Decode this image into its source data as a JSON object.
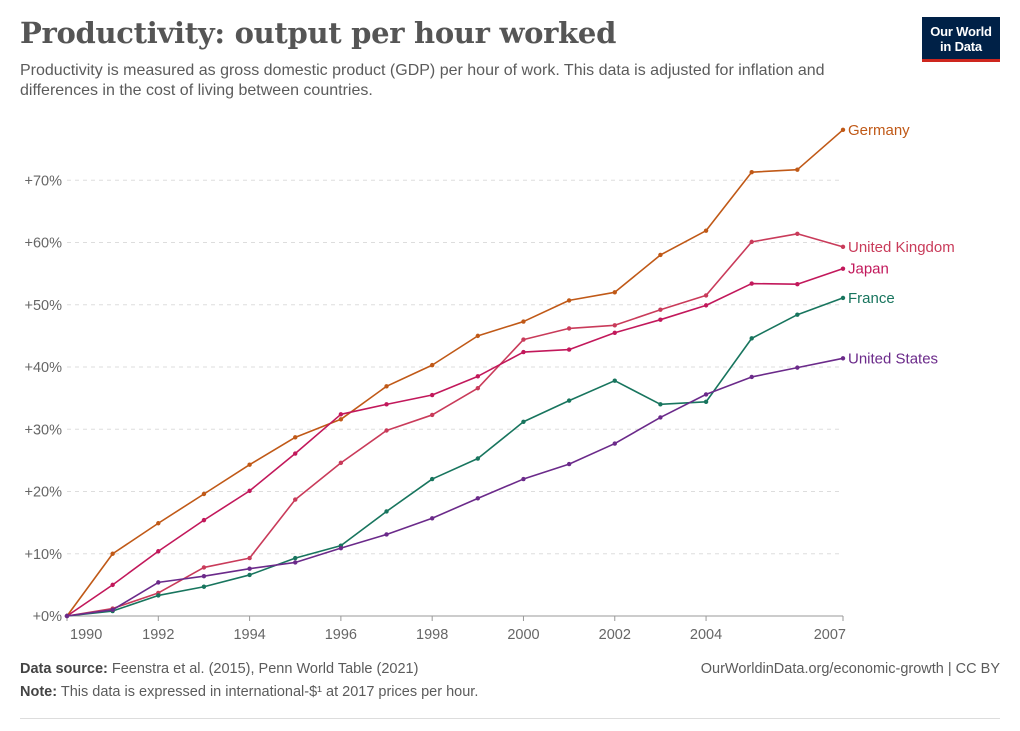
{
  "header": {
    "title": "Productivity: output per hour worked",
    "subtitle": "Productivity is measured as gross domestic product (GDP) per hour of work. This data is adjusted for inflation and differences in the cost of living between countries."
  },
  "logo": {
    "line1": "Our World",
    "line2": "in Data"
  },
  "footer": {
    "source_label": "Data source:",
    "source_text": "Feenstra et al. (2015), Penn World Table (2021)",
    "note_label": "Note:",
    "note_text": "This data is expressed in international-$¹ at 2017 prices per hour.",
    "right_text": "OurWorldinData.org/economic-growth | CC BY"
  },
  "chart_data": {
    "type": "line",
    "title": "Productivity: output per hour worked",
    "xlabel": "",
    "ylabel": "",
    "x": [
      1990,
      1991,
      1992,
      1993,
      1994,
      1995,
      1996,
      1997,
      1998,
      1999,
      2000,
      2001,
      2002,
      2003,
      2004,
      2005,
      2006,
      2007
    ],
    "x_ticks": [
      1990,
      1992,
      1994,
      1996,
      1998,
      2000,
      2002,
      2004,
      2007
    ],
    "y_ticks": [
      0,
      10,
      20,
      30,
      40,
      50,
      60,
      70
    ],
    "y_tick_labels": [
      "+0%",
      "+10%",
      "+20%",
      "+30%",
      "+40%",
      "+50%",
      "+60%",
      "+70%"
    ],
    "xlim": [
      1990,
      2007
    ],
    "ylim": [
      0,
      80
    ],
    "grid": "horizontal dashed",
    "legend": "labels at line ends",
    "series": [
      {
        "name": "Germany",
        "color": "#c05917",
        "values": [
          0,
          10,
          14.9,
          19.6,
          24.3,
          28.7,
          31.6,
          36.9,
          40.3,
          45.0,
          47.3,
          50.7,
          52.0,
          58.0,
          61.9,
          71.3,
          71.7,
          78.1
        ]
      },
      {
        "name": "United Kingdom",
        "color": "#c93b5a",
        "values": [
          0,
          1.2,
          3.7,
          7.8,
          9.3,
          18.7,
          24.6,
          29.8,
          32.3,
          36.6,
          44.4,
          46.2,
          46.7,
          49.2,
          51.5,
          60.1,
          61.4,
          59.3
        ]
      },
      {
        "name": "Japan",
        "color": "#c2185b",
        "values": [
          0,
          5.0,
          10.4,
          15.4,
          20.1,
          26.1,
          32.4,
          34.0,
          35.5,
          38.5,
          42.4,
          42.8,
          45.5,
          47.6,
          49.9,
          53.4,
          53.3,
          55.8
        ]
      },
      {
        "name": "France",
        "color": "#18755e",
        "values": [
          0,
          0.8,
          3.3,
          4.7,
          6.6,
          9.3,
          11.3,
          16.8,
          22.0,
          25.3,
          31.2,
          34.6,
          37.8,
          34.0,
          34.4,
          44.6,
          48.4,
          51.1
        ]
      },
      {
        "name": "United States",
        "color": "#6b2a8a",
        "values": [
          0,
          1.0,
          5.4,
          6.4,
          7.6,
          8.6,
          10.9,
          13.1,
          15.7,
          18.9,
          22.0,
          24.4,
          27.7,
          31.9,
          35.6,
          38.4,
          39.9,
          41.4
        ]
      }
    ]
  }
}
